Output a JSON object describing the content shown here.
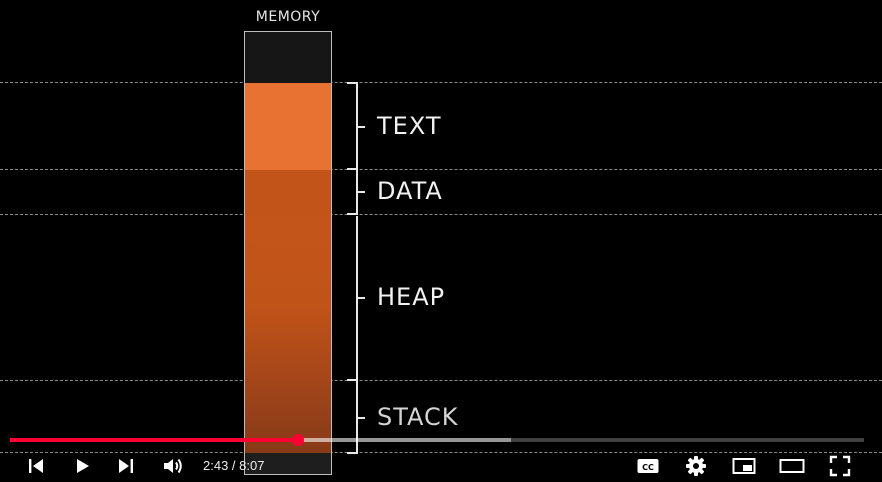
{
  "diagram": {
    "memory_title": "MEMORY",
    "segments": [
      {
        "label": "TEXT",
        "color": "#e77232"
      },
      {
        "label": "DATA",
        "color": "#c2541a"
      },
      {
        "label": "HEAP",
        "color": "#c05318"
      },
      {
        "label": "STACK",
        "color": "#a3461a"
      }
    ]
  },
  "player": {
    "current_time": "2:43",
    "separator": " / ",
    "duration": "8:07",
    "played_fraction": 0.337,
    "buffered_fraction": 0.587,
    "accent_color": "#ff0033",
    "controls": [
      "previous-icon",
      "play-icon",
      "next-icon",
      "volume-icon",
      "captions-icon",
      "settings-icon",
      "miniplayer-icon",
      "theater-icon",
      "fullscreen-icon"
    ]
  }
}
